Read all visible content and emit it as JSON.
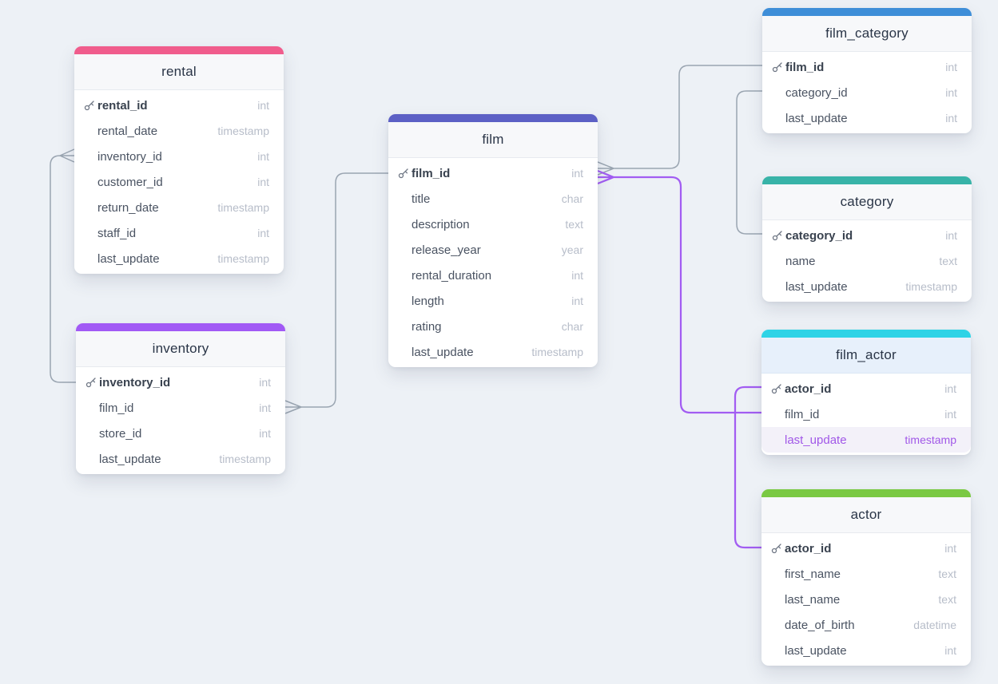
{
  "colors": {
    "background": "#edf1f6",
    "line_gray": "#9aa5b1",
    "line_purple": "#a25df2",
    "highlight_text": "#a158e8",
    "key_icon": "#6e7684"
  },
  "tables": [
    {
      "name": "rental",
      "accent": "#f05c8c",
      "selected": false,
      "fields": [
        {
          "name": "rental_id",
          "type": "int",
          "pk": true
        },
        {
          "name": "rental_date",
          "type": "timestamp"
        },
        {
          "name": "inventory_id",
          "type": "int"
        },
        {
          "name": "customer_id",
          "type": "int"
        },
        {
          "name": "return_date",
          "type": "timestamp"
        },
        {
          "name": "staff_id",
          "type": "int"
        },
        {
          "name": "last_update",
          "type": "timestamp"
        }
      ]
    },
    {
      "name": "inventory",
      "accent": "#a159f5",
      "selected": false,
      "fields": [
        {
          "name": "inventory_id",
          "type": "int",
          "pk": true
        },
        {
          "name": "film_id",
          "type": "int"
        },
        {
          "name": "store_id",
          "type": "int"
        },
        {
          "name": "last_update",
          "type": "timestamp"
        }
      ]
    },
    {
      "name": "film",
      "accent": "#5c60c5",
      "selected": false,
      "fields": [
        {
          "name": "film_id",
          "type": "int",
          "pk": true
        },
        {
          "name": "title",
          "type": "char"
        },
        {
          "name": "description",
          "type": "text"
        },
        {
          "name": "release_year",
          "type": "year"
        },
        {
          "name": "rental_duration",
          "type": "int"
        },
        {
          "name": "length",
          "type": "int"
        },
        {
          "name": "rating",
          "type": "char"
        },
        {
          "name": "last_update",
          "type": "timestamp"
        }
      ]
    },
    {
      "name": "film_category",
      "accent": "#3e8ed8",
      "selected": false,
      "fields": [
        {
          "name": "film_id",
          "type": "int",
          "pk": true
        },
        {
          "name": "category_id",
          "type": "int"
        },
        {
          "name": "last_update",
          "type": "int"
        }
      ]
    },
    {
      "name": "category",
      "accent": "#38b3a8",
      "selected": false,
      "fields": [
        {
          "name": "category_id",
          "type": "int",
          "pk": true
        },
        {
          "name": "name",
          "type": "text"
        },
        {
          "name": "last_update",
          "type": "timestamp"
        }
      ]
    },
    {
      "name": "film_actor",
      "accent": "#2ed3e6",
      "selected": true,
      "fields": [
        {
          "name": "actor_id",
          "type": "int",
          "pk": true
        },
        {
          "name": "film_id",
          "type": "int"
        },
        {
          "name": "last_update",
          "type": "timestamp",
          "highlight": true
        }
      ]
    },
    {
      "name": "actor",
      "accent": "#7ac943",
      "selected": false,
      "fields": [
        {
          "name": "actor_id",
          "type": "int",
          "pk": true
        },
        {
          "name": "first_name",
          "type": "text"
        },
        {
          "name": "last_name",
          "type": "text"
        },
        {
          "name": "date_of_birth",
          "type": "datetime"
        },
        {
          "name": "last_update",
          "type": "int"
        }
      ]
    }
  ],
  "relationships": [
    {
      "from": "inventory.inventory_id",
      "to": "rental.inventory_id",
      "many_end": "rental",
      "color": "gray"
    },
    {
      "from": "film.film_id",
      "to": "inventory.film_id",
      "many_end": "inventory",
      "color": "gray"
    },
    {
      "from": "film_category.film_id",
      "to": "film.film_id",
      "many_end": "film",
      "color": "gray"
    },
    {
      "from": "category.category_id",
      "to": "film_category.category_id",
      "many_end": null,
      "color": "gray"
    },
    {
      "from": "film_actor.film_id",
      "to": "film.film_id",
      "many_end": "film",
      "color": "purple"
    },
    {
      "from": "actor.actor_id",
      "to": "film_actor.actor_id",
      "many_end": null,
      "color": "purple"
    }
  ]
}
